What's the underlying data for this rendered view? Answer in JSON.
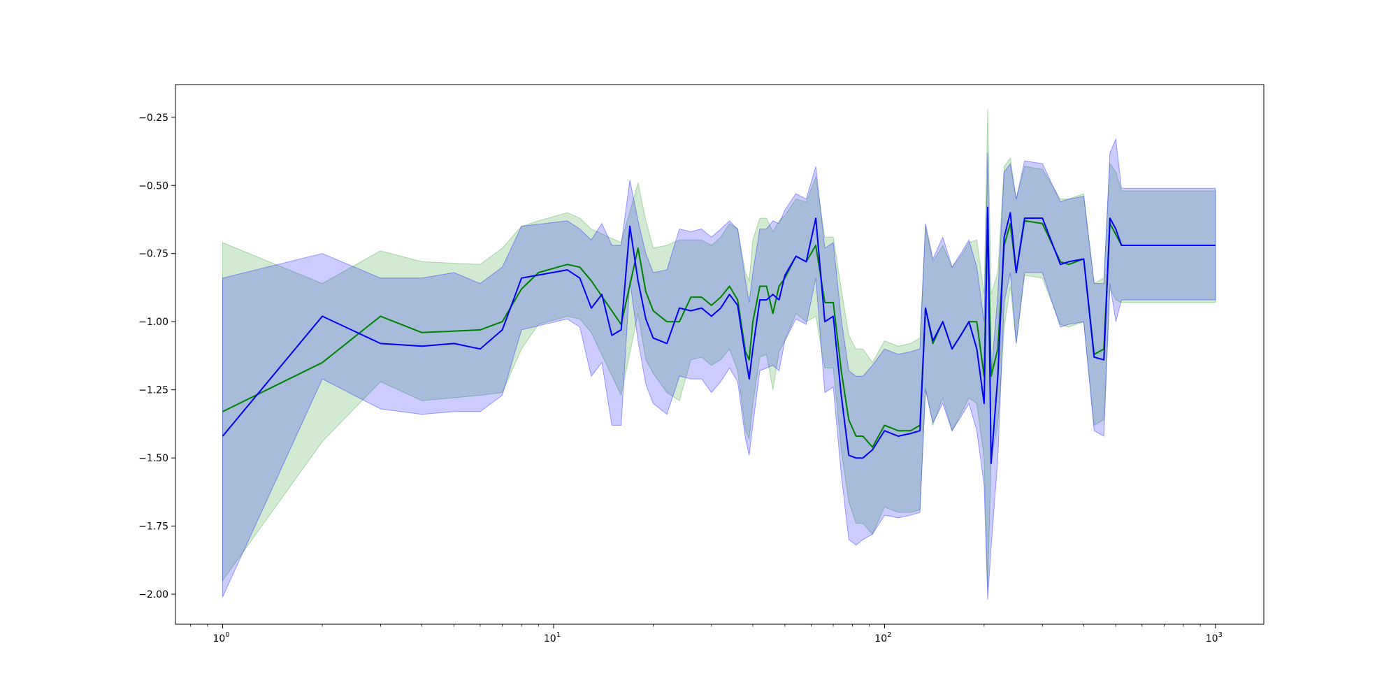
{
  "chart_data": {
    "type": "line",
    "title": "",
    "xlabel": "",
    "ylabel": "",
    "x_scale": "log",
    "xlim": [
      0.72,
      1400
    ],
    "ylim": [
      -2.11,
      -0.13
    ],
    "grid": false,
    "x_tick_labels": [
      {
        "base": "10",
        "exp": "0",
        "value": 1
      },
      {
        "base": "10",
        "exp": "1",
        "value": 10
      },
      {
        "base": "10",
        "exp": "2",
        "value": 100
      },
      {
        "base": "10",
        "exp": "3",
        "value": 1000
      }
    ],
    "y_ticks": [
      -0.25,
      -0.5,
      -0.75,
      -1.0,
      -1.25,
      -1.5,
      -1.75,
      -2.0
    ],
    "y_tick_labels": [
      "−0.25",
      "−0.50",
      "−0.75",
      "−1.00",
      "−1.25",
      "−1.50",
      "−1.75",
      "−2.00"
    ],
    "series": [
      {
        "color": "#008000",
        "band_color": "#2ca02c",
        "band_opacity": 0.22,
        "x": [
          1,
          2,
          3,
          4,
          6,
          7,
          8,
          9,
          11,
          12,
          13,
          16,
          18,
          19,
          20,
          22,
          24,
          26,
          28,
          30,
          32,
          34,
          36,
          38,
          39,
          40,
          42,
          44,
          46,
          48,
          50,
          54,
          58,
          62,
          66,
          70,
          74,
          78,
          82,
          86,
          92,
          100,
          110,
          120,
          128,
          133,
          140,
          150,
          160,
          170,
          180,
          190,
          200,
          205,
          210,
          220,
          230,
          240,
          250,
          265,
          300,
          340,
          360,
          400,
          430,
          460,
          480,
          500,
          520,
          1000
        ],
        "y": [
          -1.33,
          -1.15,
          -0.98,
          -1.04,
          -1.03,
          -1.0,
          -0.88,
          -0.82,
          -0.79,
          -0.8,
          -0.85,
          -1.01,
          -0.73,
          -0.89,
          -0.96,
          -1.0,
          -1.0,
          -0.91,
          -0.91,
          -0.94,
          -0.91,
          -0.87,
          -0.92,
          -1.11,
          -1.14,
          -1.0,
          -0.87,
          -0.87,
          -0.97,
          -0.87,
          -0.84,
          -0.76,
          -0.78,
          -0.72,
          -0.93,
          -0.93,
          -1.18,
          -1.36,
          -1.42,
          -1.42,
          -1.46,
          -1.38,
          -1.4,
          -1.4,
          -1.38,
          -0.95,
          -1.08,
          -1.0,
          -1.1,
          -1.05,
          -1.0,
          -1.0,
          -1.2,
          -0.6,
          -1.2,
          -1.1,
          -0.72,
          -0.64,
          -0.82,
          -0.63,
          -0.64,
          -0.78,
          -0.79,
          -0.77,
          -1.12,
          -1.1,
          -0.64,
          -0.68,
          -0.72,
          -0.72
        ],
        "upper": [
          -0.71,
          -0.86,
          -0.74,
          -0.78,
          -0.79,
          -0.73,
          -0.65,
          -0.63,
          -0.6,
          -0.62,
          -0.66,
          -0.71,
          -0.49,
          -0.63,
          -0.73,
          -0.72,
          -0.7,
          -0.7,
          -0.7,
          -0.72,
          -0.69,
          -0.64,
          -0.66,
          -0.82,
          -0.85,
          -0.7,
          -0.62,
          -0.62,
          -0.67,
          -0.63,
          -0.61,
          -0.55,
          -0.56,
          -0.47,
          -0.69,
          -0.69,
          -0.88,
          -1.05,
          -1.1,
          -1.1,
          -1.15,
          -1.07,
          -1.09,
          -1.08,
          -1.06,
          -0.65,
          -0.78,
          -0.72,
          -0.8,
          -0.76,
          -0.71,
          -0.7,
          -0.9,
          -0.22,
          -0.9,
          -0.82,
          -0.43,
          -0.4,
          -0.55,
          -0.43,
          -0.44,
          -0.55,
          -0.55,
          -0.53,
          -0.86,
          -0.84,
          -0.42,
          -0.45,
          -0.52,
          -0.52
        ],
        "lower": [
          -1.95,
          -1.44,
          -1.22,
          -1.29,
          -1.27,
          -1.26,
          -1.1,
          -1.01,
          -0.98,
          -0.99,
          -1.04,
          -1.27,
          -0.97,
          -1.14,
          -1.19,
          -1.26,
          -1.29,
          -1.14,
          -1.13,
          -1.16,
          -1.14,
          -1.1,
          -1.18,
          -1.4,
          -1.43,
          -1.3,
          -1.13,
          -1.12,
          -1.25,
          -1.11,
          -1.07,
          -0.97,
          -1.0,
          -0.98,
          -1.17,
          -1.17,
          -1.47,
          -1.66,
          -1.74,
          -1.74,
          -1.78,
          -1.68,
          -1.7,
          -1.7,
          -1.69,
          -1.24,
          -1.38,
          -1.28,
          -1.4,
          -1.34,
          -1.28,
          -1.3,
          -1.5,
          -1.98,
          -1.5,
          -1.38,
          -1.02,
          -0.87,
          -1.08,
          -0.83,
          -0.84,
          -1.01,
          -1.02,
          -1.0,
          -1.38,
          -1.36,
          -0.88,
          -0.92,
          -0.93,
          -0.93
        ]
      },
      {
        "color": "#0000ff",
        "band_color": "#0000ff",
        "band_opacity": 0.2,
        "x": [
          1,
          2,
          3,
          4,
          5,
          6,
          7,
          8,
          11,
          12,
          13,
          14,
          15,
          16,
          17,
          18,
          19,
          20,
          22,
          24,
          26,
          28,
          30,
          32,
          34,
          36,
          38,
          39,
          40,
          42,
          44,
          46,
          48,
          50,
          54,
          58,
          62,
          66,
          70,
          74,
          78,
          82,
          86,
          92,
          100,
          110,
          120,
          128,
          133,
          140,
          150,
          160,
          170,
          180,
          190,
          200,
          205,
          210,
          220,
          230,
          240,
          250,
          265,
          300,
          340,
          360,
          400,
          430,
          460,
          480,
          500,
          520,
          1000
        ],
        "y": [
          -1.42,
          -0.98,
          -1.08,
          -1.09,
          -1.08,
          -1.1,
          -1.03,
          -0.84,
          -0.81,
          -0.84,
          -0.95,
          -0.9,
          -1.05,
          -1.03,
          -0.65,
          -0.85,
          -0.99,
          -1.06,
          -1.08,
          -0.95,
          -0.96,
          -0.95,
          -0.98,
          -0.95,
          -0.9,
          -0.94,
          -1.13,
          -1.21,
          -1.1,
          -0.92,
          -0.92,
          -0.9,
          -0.92,
          -0.83,
          -0.76,
          -0.78,
          -0.62,
          -1.0,
          -0.98,
          -1.27,
          -1.49,
          -1.5,
          -1.5,
          -1.47,
          -1.4,
          -1.42,
          -1.41,
          -1.4,
          -0.95,
          -1.07,
          -1.0,
          -1.1,
          -1.05,
          -1.0,
          -1.1,
          -1.3,
          -0.58,
          -1.52,
          -1.2,
          -0.69,
          -0.6,
          -0.82,
          -0.62,
          -0.62,
          -0.79,
          -0.78,
          -0.77,
          -1.13,
          -1.14,
          -0.62,
          -0.66,
          -0.72,
          -0.72
        ],
        "upper": [
          -0.84,
          -0.75,
          -0.84,
          -0.84,
          -0.82,
          -0.86,
          -0.8,
          -0.65,
          -0.63,
          -0.66,
          -0.7,
          -0.64,
          -0.72,
          -0.72,
          -0.48,
          -0.63,
          -0.75,
          -0.82,
          -0.81,
          -0.66,
          -0.67,
          -0.66,
          -0.69,
          -0.66,
          -0.63,
          -0.66,
          -0.85,
          -0.93,
          -0.82,
          -0.66,
          -0.66,
          -0.63,
          -0.64,
          -0.59,
          -0.53,
          -0.55,
          -0.43,
          -0.73,
          -0.71,
          -0.99,
          -1.18,
          -1.2,
          -1.2,
          -1.16,
          -1.1,
          -1.12,
          -1.11,
          -1.1,
          -0.64,
          -0.77,
          -0.69,
          -0.8,
          -0.75,
          -0.7,
          -0.8,
          -1.0,
          -0.38,
          -1.2,
          -0.9,
          -0.45,
          -0.42,
          -0.55,
          -0.41,
          -0.42,
          -0.56,
          -0.55,
          -0.54,
          -0.86,
          -0.86,
          -0.38,
          -0.33,
          -0.51,
          -0.51
        ],
        "lower": [
          -2.01,
          -1.21,
          -1.32,
          -1.34,
          -1.33,
          -1.33,
          -1.27,
          -1.03,
          -0.99,
          -1.02,
          -1.2,
          -1.15,
          -1.38,
          -1.38,
          -0.85,
          -1.07,
          -1.23,
          -1.3,
          -1.34,
          -1.2,
          -1.21,
          -1.21,
          -1.26,
          -1.22,
          -1.17,
          -1.22,
          -1.43,
          -1.49,
          -1.38,
          -1.18,
          -1.17,
          -1.16,
          -1.18,
          -1.07,
          -0.99,
          -1.01,
          -0.84,
          -1.26,
          -1.24,
          -1.56,
          -1.8,
          -1.82,
          -1.8,
          -1.78,
          -1.71,
          -1.72,
          -1.71,
          -1.7,
          -1.25,
          -1.37,
          -1.3,
          -1.4,
          -1.35,
          -1.3,
          -1.4,
          -1.6,
          -2.02,
          -1.83,
          -1.5,
          -0.93,
          -0.82,
          -1.08,
          -0.82,
          -0.82,
          -1.02,
          -1.01,
          -1.0,
          -1.4,
          -1.42,
          -0.86,
          -1.0,
          -0.92,
          -0.92
        ]
      }
    ]
  }
}
